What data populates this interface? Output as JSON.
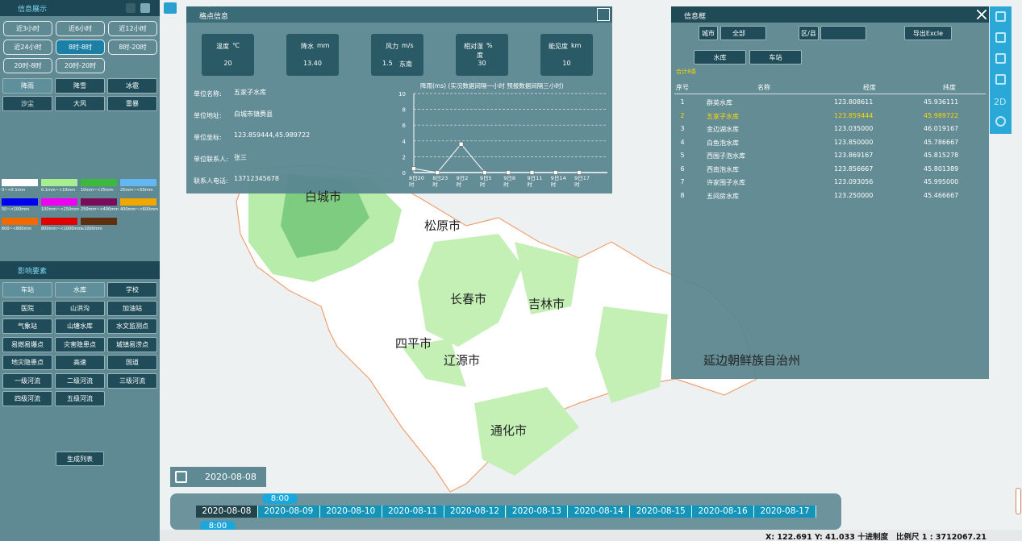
{
  "left": {
    "header": "信息展示",
    "time_buttons": [
      "近3小时",
      "近6小时",
      "近12小时",
      "近24小时",
      "8时-8时",
      "8时-20时",
      "20时-8时",
      "20时-20时"
    ],
    "time_active": 4,
    "weather_buttons": [
      "降雨",
      "降雪",
      "冰雹",
      "沙尘",
      "大风",
      "雷暴"
    ],
    "weather_active": 0,
    "legend": [
      {
        "label": "0~<0.1mm",
        "color": "#ffffff"
      },
      {
        "label": "0.1mm~<10mm",
        "color": "#a6ee8e"
      },
      {
        "label": "10mm~<25mm",
        "color": "#3cb83c"
      },
      {
        "label": "25mm~<50mm",
        "color": "#63b8f2"
      },
      {
        "label": "50~<100mm",
        "color": "#0000f0"
      },
      {
        "label": "100mm~<250mm",
        "color": "#f000f0"
      },
      {
        "label": "250mm~<400mm",
        "color": "#7a0a5a"
      },
      {
        "label": "400mm~<600mm",
        "color": "#f0a800"
      },
      {
        "label": "600~<800mm",
        "color": "#f06a00"
      },
      {
        "label": "800mm~<1000mm",
        "color": "#e00000"
      },
      {
        "label": "≥1000mm",
        "color": "#5e3010"
      }
    ],
    "factor_header": "影响要素",
    "factor_buttons": [
      "车站",
      "水库",
      "学校",
      "医院",
      "山洪沟",
      "加油站",
      "气象站",
      "山塘水库",
      "水文监测点",
      "易燃易爆点",
      "灾害隐患点",
      "城镇易涝点",
      "地灾隐患点",
      "高速",
      "国道",
      "一级河流",
      "二级河流",
      "三级河流",
      "四级河流",
      "五级河流"
    ],
    "factor_active": [
      0,
      1
    ],
    "generate": "生成列表"
  },
  "popup": {
    "title": "格点信息",
    "cards": [
      {
        "name": "温度",
        "unit": "℃",
        "value": "20"
      },
      {
        "name": "降水",
        "unit": "mm",
        "value": "13.40"
      },
      {
        "name": "风力",
        "unit": "m/s",
        "value": "1.5",
        "extra": "东南"
      },
      {
        "name": "相对湿度",
        "unit": "%",
        "value": "30"
      },
      {
        "name": "能见度",
        "unit": "km",
        "value": "10"
      }
    ],
    "fields": [
      {
        "label": "单位名称:",
        "value": "五家子水库"
      },
      {
        "label": "单位地址:",
        "value": "白城市镇赉县"
      },
      {
        "label": "单位坐标:",
        "value": "123.859444,45.989722"
      },
      {
        "label": "单位联系人:",
        "value": "张三"
      },
      {
        "label": "联系人电话:",
        "value": "13712345678"
      }
    ],
    "chart": {
      "type": "line",
      "title": "降雨(ms)   (实况数据间隔一小时   预报数据间隔三小时)",
      "categories": [
        "8日20时",
        "8日23时",
        "9日2时",
        "9日5时",
        "9日8时",
        "9日11时",
        "9日14时",
        "9日17时"
      ],
      "values": [
        0.5,
        0,
        3.6,
        0,
        0,
        0,
        0,
        0
      ],
      "ylim": [
        0,
        10
      ],
      "yticks": [
        0,
        2,
        4,
        6,
        8,
        10
      ],
      "grid": true,
      "color": "#ffffff"
    }
  },
  "map_labels": [
    "白城市",
    "松原市",
    "长春市",
    "吉林市",
    "四平市",
    "辽源市",
    "通化市",
    "延边朝鲜族自治州"
  ],
  "info": {
    "title": "信息框",
    "city_label": "城市",
    "city_value": "全部",
    "county_label": "区/县",
    "export": "导出Excle",
    "tabs": [
      "水库",
      "车站"
    ],
    "total": "合计8条",
    "headers": [
      "序号",
      "名称",
      "经度",
      "纬度"
    ],
    "highlight": 1,
    "rows": [
      [
        "1",
        "群英水库",
        "123.808611",
        "45.936111"
      ],
      [
        "2",
        "五家子水库",
        "123.859444",
        "45.989722"
      ],
      [
        "3",
        "金边湖水库",
        "123.035000",
        "46.019167"
      ],
      [
        "4",
        "白鱼泡水库",
        "123.850000",
        "45.786667"
      ],
      [
        "5",
        "西围子泡水库",
        "123.869167",
        "45.815278"
      ],
      [
        "6",
        "西南泡水库",
        "123.856667",
        "45.801389"
      ],
      [
        "7",
        "许家围子水库",
        "123.093056",
        "45.995000"
      ],
      [
        "8",
        "五间房水库",
        "123.250000",
        "45.466667"
      ]
    ]
  },
  "toolbar": {
    "mode": "2D"
  },
  "timeline": {
    "date": "2020-08-08",
    "time_top": "8:00",
    "time_bottom": "8:00",
    "dates": [
      "2020-08-08",
      "2020-08-09",
      "2020-08-10",
      "2020-08-11",
      "2020-08-12",
      "2020-08-13",
      "2020-08-14",
      "2020-08-15",
      "2020-08-16",
      "2020-08-17"
    ],
    "active": 0
  },
  "status": "X: 122.691 Y: 41.033 十进制度   比例尺 1 : 3712067.21"
}
